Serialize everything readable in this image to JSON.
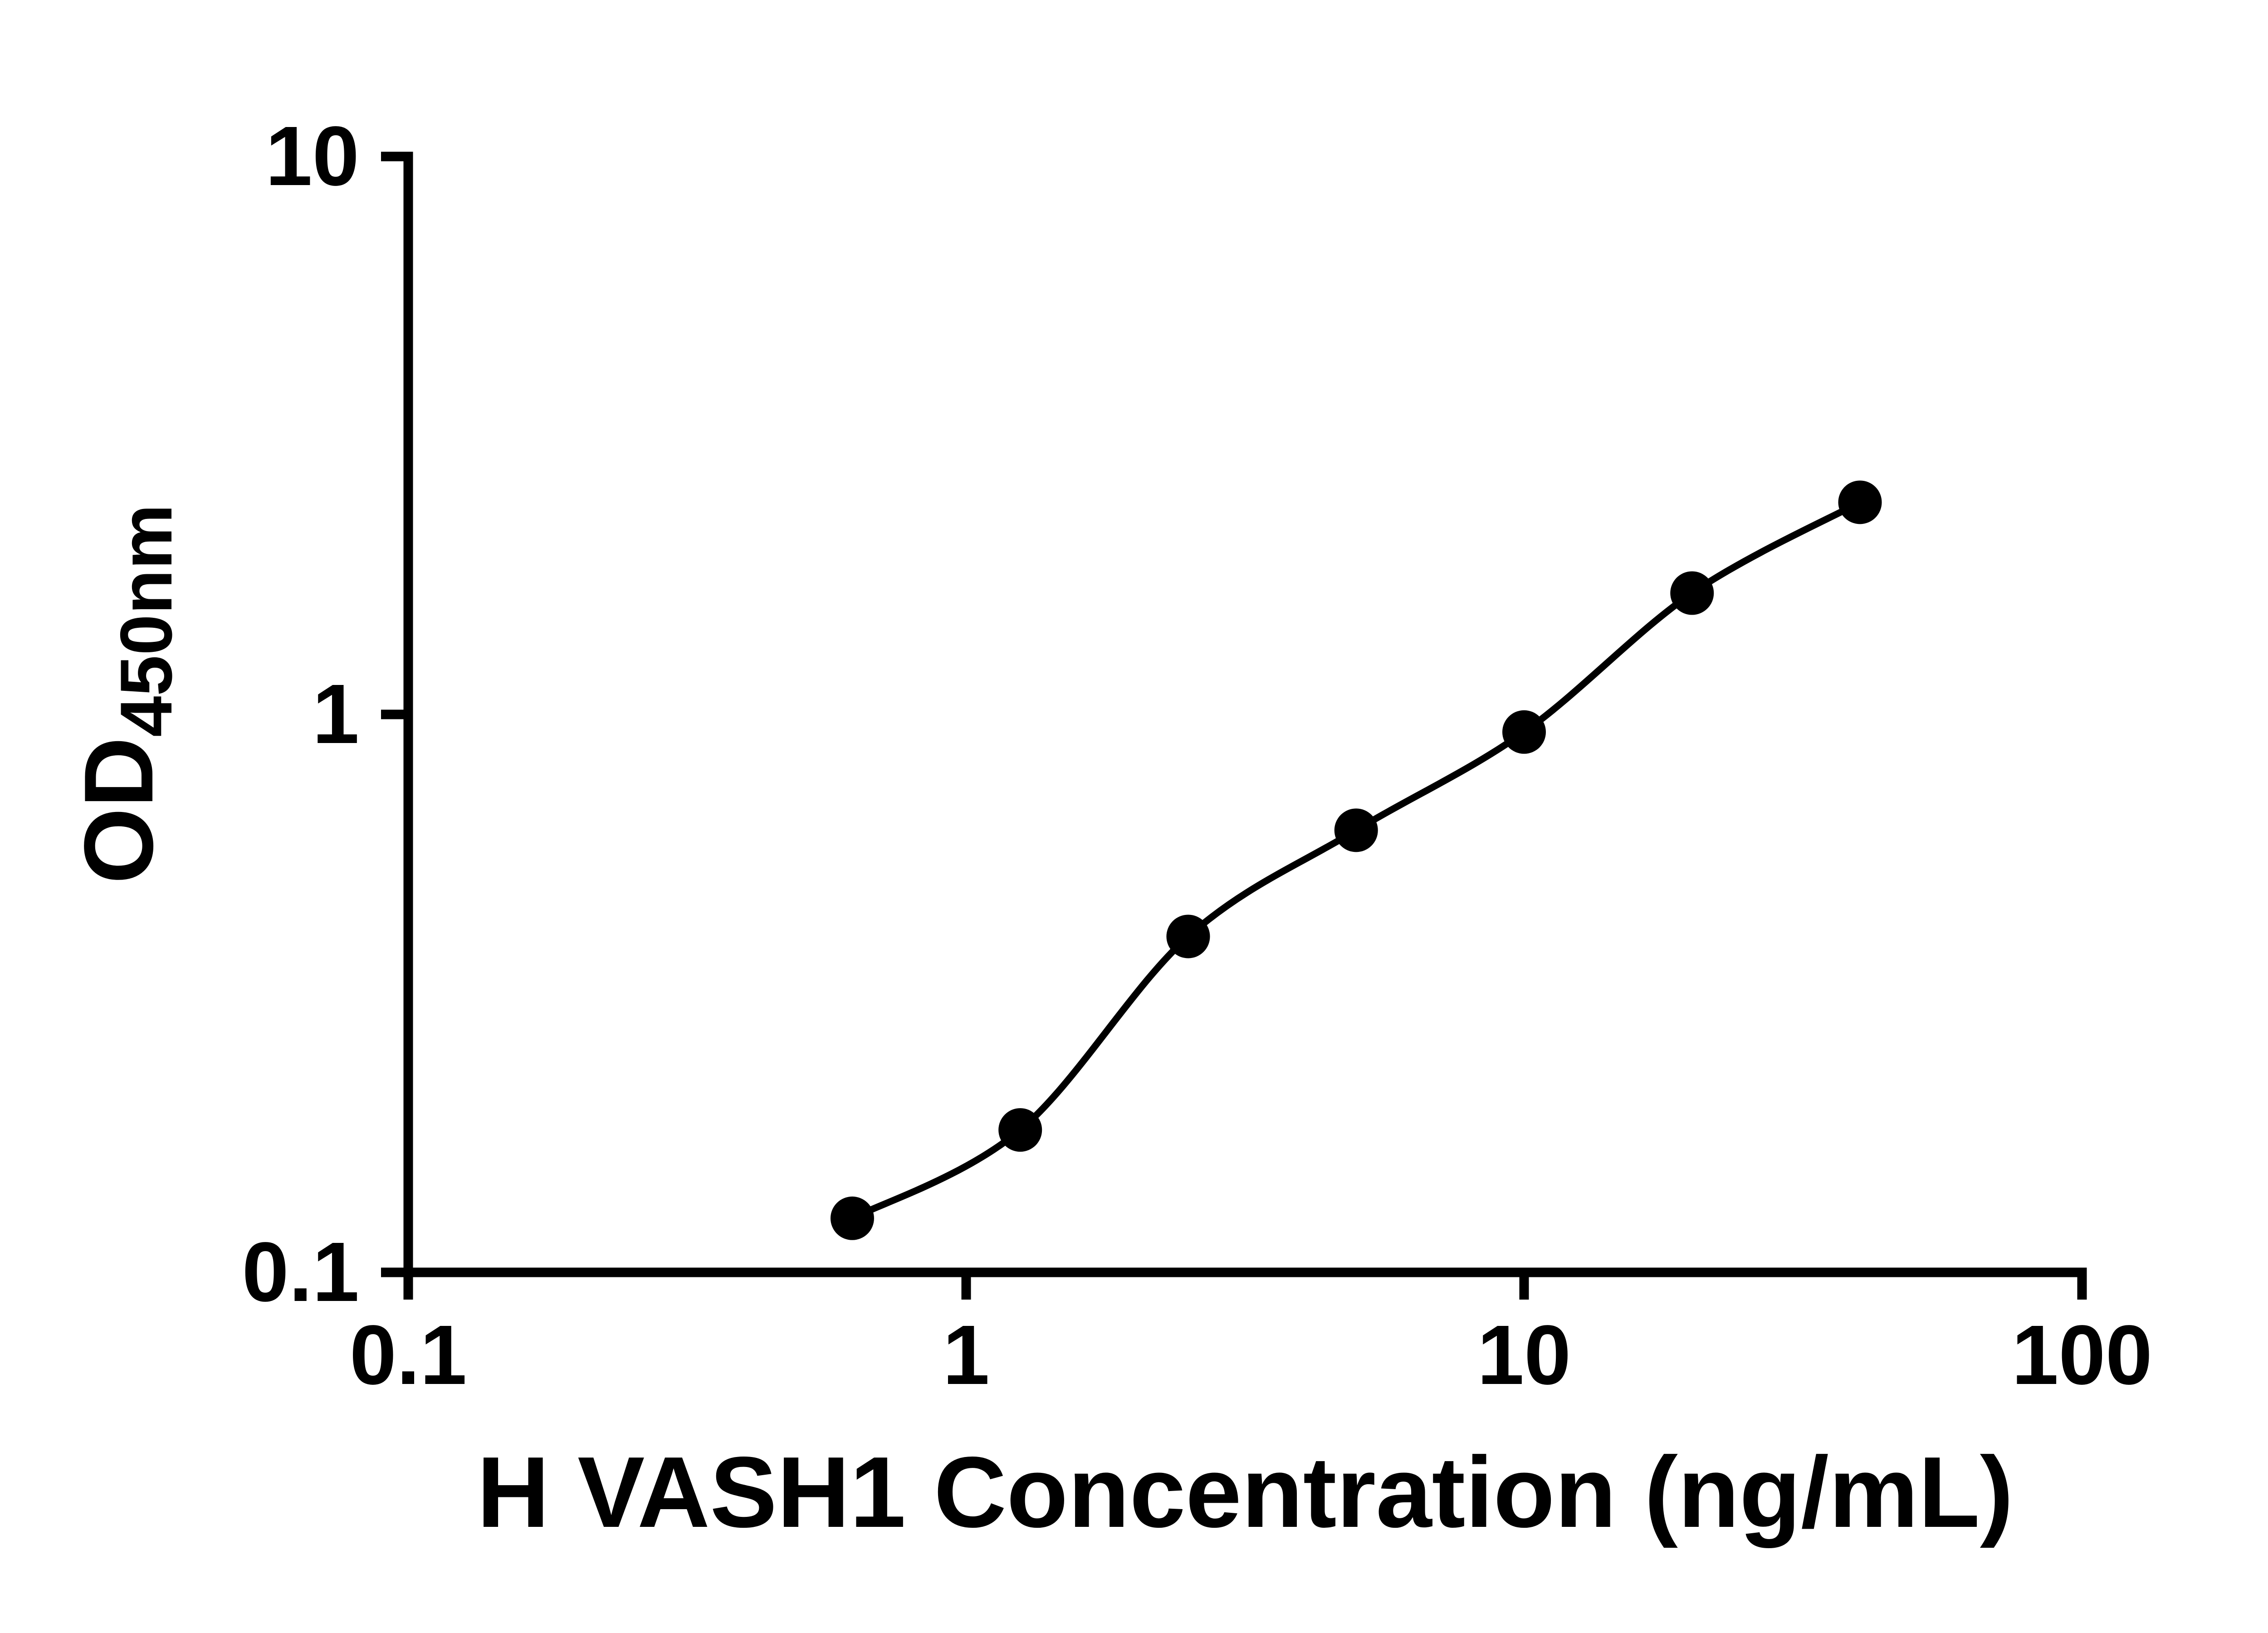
{
  "chart_data": {
    "type": "scatter",
    "title": "",
    "xlabel": "H VASH1 Concentration (ng/mL)",
    "ylabel": {
      "main": "OD",
      "sub": "450nm"
    },
    "x_scale": "log",
    "y_scale": "log",
    "x_range": [
      0.1,
      100
    ],
    "y_range": [
      0.1,
      10
    ],
    "grid": false,
    "legend": false,
    "x_ticks": [
      {
        "value": 0.1,
        "label": "0.1"
      },
      {
        "value": 1,
        "label": "1"
      },
      {
        "value": 10,
        "label": "10"
      },
      {
        "value": 100,
        "label": "100"
      }
    ],
    "y_ticks": [
      {
        "value": 0.1,
        "label": "0.1"
      },
      {
        "value": 1,
        "label": "1"
      },
      {
        "value": 10,
        "label": "10"
      }
    ],
    "points": [
      {
        "x": 0.625,
        "y": 0.125
      },
      {
        "x": 1.25,
        "y": 0.18
      },
      {
        "x": 2.5,
        "y": 0.4
      },
      {
        "x": 5,
        "y": 0.62
      },
      {
        "x": 10,
        "y": 0.93
      },
      {
        "x": 20,
        "y": 1.65
      },
      {
        "x": 40,
        "y": 2.4
      }
    ],
    "has_fit_curve": true,
    "marker_color": "#000000",
    "line_color": "#000000",
    "axis_color": "#000000",
    "background": "#ffffff"
  }
}
